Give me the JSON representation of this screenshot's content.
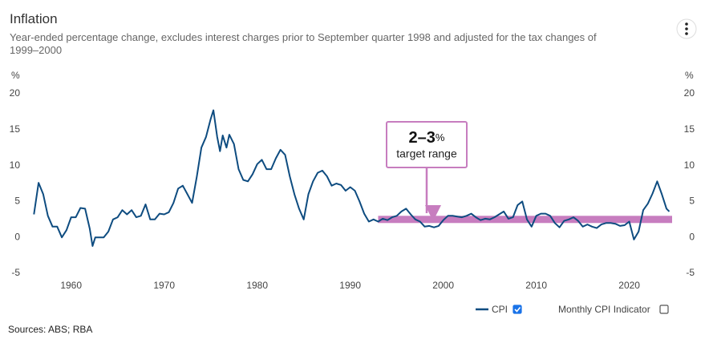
{
  "chart_data": {
    "type": "line",
    "title": "Inflation",
    "subtitle": "Year-ended percentage change, excludes interest charges prior to September quarter 1998 and adjusted for the tax changes of 1999–2000",
    "y_unit_label": "%",
    "source": "Sources: ABS; RBA",
    "xlim": [
      1955.2,
      2024.6
    ],
    "xticks": [
      1960,
      1970,
      1980,
      1990,
      2000,
      2010,
      2020
    ],
    "ylim": [
      -5,
      20
    ],
    "yticks": [
      -5,
      0,
      5,
      10,
      15,
      20
    ],
    "y2lim": [
      -5,
      20
    ],
    "y2ticks": [
      -5,
      0,
      5,
      10,
      15,
      20
    ],
    "grid": false,
    "target_band": {
      "y": [
        2,
        3
      ],
      "x": [
        1993,
        2024.6
      ],
      "color": "#c77dbf"
    },
    "annotation": {
      "value": "2–3",
      "unit": "%",
      "label": "target range"
    },
    "legend": [
      {
        "name": "CPI",
        "checked": true
      },
      {
        "name": "Monthly CPI Indicator",
        "checked": false
      }
    ],
    "x": [
      1956.0,
      1956.5,
      1957.0,
      1957.5,
      1958.0,
      1958.5,
      1959.0,
      1959.5,
      1960.0,
      1960.5,
      1961.0,
      1961.5,
      1962.0,
      1962.3,
      1962.6,
      1963.0,
      1963.5,
      1964.0,
      1964.5,
      1965.0,
      1965.5,
      1966.0,
      1966.5,
      1967.0,
      1967.5,
      1968.0,
      1968.5,
      1969.0,
      1969.5,
      1970.0,
      1970.5,
      1971.0,
      1971.5,
      1972.0,
      1972.5,
      1973.0,
      1973.5,
      1974.0,
      1974.5,
      1975.0,
      1975.3,
      1975.7,
      1976.0,
      1976.3,
      1976.7,
      1977.0,
      1977.5,
      1978.0,
      1978.5,
      1979.0,
      1979.5,
      1980.0,
      1980.5,
      1981.0,
      1981.5,
      1982.0,
      1982.5,
      1983.0,
      1983.5,
      1984.0,
      1984.5,
      1985.0,
      1985.5,
      1986.0,
      1986.5,
      1987.0,
      1987.5,
      1988.0,
      1988.5,
      1989.0,
      1989.5,
      1990.0,
      1990.5,
      1991.0,
      1991.5,
      1992.0,
      1992.5,
      1993.0,
      1993.5,
      1994.0,
      1994.5,
      1995.0,
      1995.5,
      1996.0,
      1996.5,
      1997.0,
      1997.5,
      1998.0,
      1998.5,
      1999.0,
      1999.5,
      2000.0,
      2000.5,
      2001.0,
      2001.5,
      2002.0,
      2002.5,
      2003.0,
      2003.5,
      2004.0,
      2004.5,
      2005.0,
      2005.5,
      2006.0,
      2006.5,
      2007.0,
      2007.5,
      2008.0,
      2008.5,
      2009.0,
      2009.5,
      2010.0,
      2010.5,
      2011.0,
      2011.5,
      2012.0,
      2012.5,
      2013.0,
      2013.5,
      2014.0,
      2014.5,
      2015.0,
      2015.5,
      2016.0,
      2016.5,
      2017.0,
      2017.5,
      2018.0,
      2018.5,
      2019.0,
      2019.5,
      2020.0,
      2020.5,
      2021.0,
      2021.5,
      2022.0,
      2022.5,
      2023.0,
      2023.5,
      2024.0,
      2024.3
    ],
    "series": [
      {
        "name": "CPI",
        "color": "#0e4c80",
        "values": [
          3.2,
          7.6,
          6.0,
          3.0,
          1.5,
          1.5,
          0.0,
          1.0,
          2.8,
          2.8,
          4.1,
          4.0,
          1.2,
          -1.2,
          0.0,
          0.0,
          0.0,
          0.8,
          2.5,
          2.8,
          3.8,
          3.2,
          3.8,
          2.8,
          3.0,
          4.6,
          2.5,
          2.5,
          3.3,
          3.2,
          3.5,
          4.8,
          6.8,
          7.2,
          6.0,
          4.8,
          8.4,
          12.5,
          14.0,
          16.5,
          17.7,
          14.0,
          12.0,
          14.2,
          12.5,
          14.3,
          13.0,
          9.5,
          8.0,
          7.8,
          8.8,
          10.2,
          10.8,
          9.5,
          9.5,
          11.0,
          12.2,
          11.5,
          8.5,
          6.0,
          4.0,
          2.5,
          6.0,
          7.8,
          9.0,
          9.3,
          8.5,
          7.2,
          7.5,
          7.3,
          6.5,
          7.0,
          6.5,
          5.0,
          3.3,
          2.2,
          2.5,
          2.2,
          2.6,
          2.4,
          2.8,
          3.0,
          3.6,
          4.0,
          3.2,
          2.5,
          2.2,
          1.5,
          1.6,
          1.4,
          1.6,
          2.4,
          3.0,
          3.0,
          2.9,
          2.8,
          3.0,
          3.3,
          2.8,
          2.4,
          2.6,
          2.5,
          2.8,
          3.2,
          3.6,
          2.6,
          2.8,
          4.5,
          5.0,
          2.5,
          1.5,
          3.0,
          3.3,
          3.3,
          3.0,
          2.0,
          1.4,
          2.3,
          2.5,
          2.8,
          2.3,
          1.5,
          1.8,
          1.5,
          1.3,
          1.8,
          2.0,
          2.0,
          1.9,
          1.6,
          1.7,
          2.2,
          -0.3,
          0.8,
          3.8,
          4.7,
          6.1,
          7.8,
          6.0,
          4.0,
          3.6
        ]
      }
    ]
  }
}
